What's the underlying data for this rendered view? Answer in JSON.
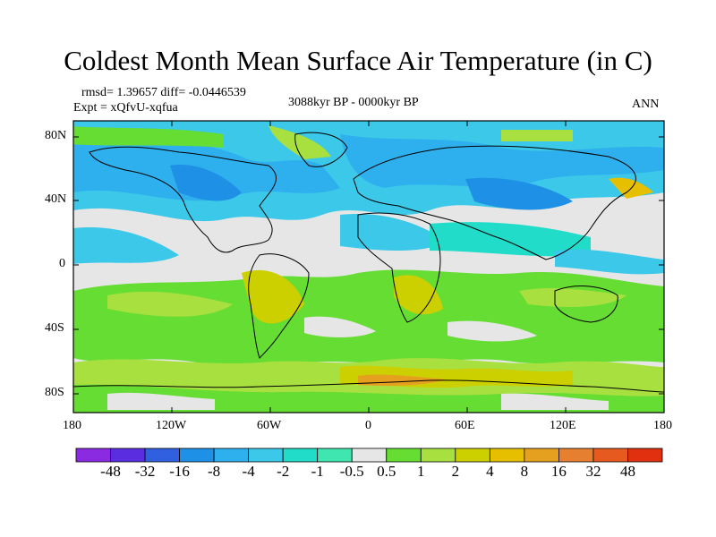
{
  "title": "Coldest Month Mean Surface Air Temperature (in C)",
  "stats": {
    "rmsd_line": "rmsd= 1.39657 diff= -0.0446539",
    "expt_line": "Expt = xQfvU-xqfua",
    "period": "3088kyr BP - 0000kyr BP",
    "season": "ANN"
  },
  "axes": {
    "y_ticks": [
      "80N",
      "40N",
      "0",
      "40S",
      "80S"
    ],
    "x_ticks": [
      "180",
      "120W",
      "60W",
      "0",
      "60E",
      "120E",
      "180"
    ]
  },
  "colorbar": {
    "colors": [
      "#8a2be2",
      "#5a2ee0",
      "#3060e0",
      "#1e90e6",
      "#2fb0ee",
      "#3cc8e8",
      "#20dcc8",
      "#40e6b0",
      "#e6e6e6",
      "#66dd33",
      "#a8e040",
      "#ccd000",
      "#e6c000",
      "#e6a020",
      "#e68030",
      "#e65a20",
      "#e03010"
    ],
    "labels": [
      "-48",
      "-32",
      "-16",
      "-8",
      "-4",
      "-2",
      "-1",
      "-0.5",
      "0.5",
      "1",
      "2",
      "4",
      "8",
      "16",
      "32",
      "48"
    ]
  }
}
